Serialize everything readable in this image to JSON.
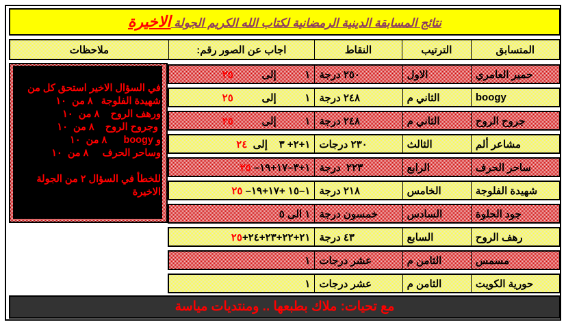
{
  "title": {
    "main": "نتائج المسابقة الدينية الرمضانية لكتاب الله الكريم الجولة ",
    "highlight": "الاخيرة"
  },
  "headers": {
    "name": "المتسابق",
    "rank": "الترتيب",
    "points": "النقاط",
    "answered": "اجاب عن الصور رقم:",
    "notes": "ملاحظات"
  },
  "rows": [
    {
      "name": "حمير العامري",
      "rank": "الاول",
      "points": "٢٥٠ درجة",
      "answer": "١          إلى          ",
      "answer_red": "٢٥",
      "style": "red"
    },
    {
      "name": "boogy",
      "rank": "الثاني م",
      "points": "٢٤٨ درجة",
      "answer": "١          إلى          ",
      "answer_red": "٢٥",
      "style": "yellow"
    },
    {
      "name": "جروح الروح",
      "rank": "الثاني م",
      "points": "٢٤٨ درجة",
      "answer": "١          إلى          ",
      "answer_red": "٢٥",
      "style": "red"
    },
    {
      "name": "مشاعر ألم",
      "rank": "الثالث",
      "points": "٢٣٠ درجات",
      "answer": "١+٢+ ٣    إلى  ",
      "answer_red": "٢٤",
      "style": "yellow"
    },
    {
      "name": "ساحر الحرف",
      "rank": "الرابع",
      "points": "٢٢٣  درجة",
      "answer": "١+٣–١٧+١٩– ",
      "answer_red": "٢٥",
      "style": "red"
    },
    {
      "name": "شهيدة الفلوجة",
      "rank": "الخامس",
      "points": "٢١٨ درجة",
      "answer": "١–١٥ +١٧+١٩– ",
      "answer_red": "٢٥",
      "style": "yellow"
    },
    {
      "name": "جود الحلوة",
      "rank": "السادس",
      "points": "خمسون درجة",
      "answer": "١ الى ٥",
      "answer_red": "",
      "style": "red"
    },
    {
      "name": "رهف الروح",
      "rank": "السابع",
      "points": "٤٣ درجة",
      "answer": "٢١+٢٢+٢٣+٢٤+",
      "answer_red": "٢٥",
      "style": "yellow"
    },
    {
      "name": "مسمس",
      "rank": "الثامن م",
      "points": "عشر درجات",
      "answer": "١",
      "answer_red": "",
      "style": "red"
    },
    {
      "name": "حورية الكويت",
      "rank": "الثامن م",
      "points": "عشر درجات",
      "answer": "١",
      "answer_red": "",
      "style": "yellow"
    }
  ],
  "notes": {
    "lines": [
      "في السؤال الاخير استحق كل من",
      "شهيدة الفلوجة   ٨ من  ١٠",
      "ورهف الروح    ٨ من  ١٠",
      " وجروح الروح    ٨ من  ١٠",
      "و boogy      ٨ من  ١٠",
      "وساحر الحرف     ٨ من  ١٠",
      " ",
      "للخطأ في السؤال ٢ من الجولة",
      "الاخيرة"
    ]
  },
  "footer": "مع تحيات: ملاك بطبعها .. ومنتديات مياسة",
  "colors": {
    "title_bg": "#ffff00",
    "title_text": "#8b3a62",
    "accent_red": "#ff0000",
    "notes_bg": "#000000",
    "footer_bg": "#333333"
  }
}
